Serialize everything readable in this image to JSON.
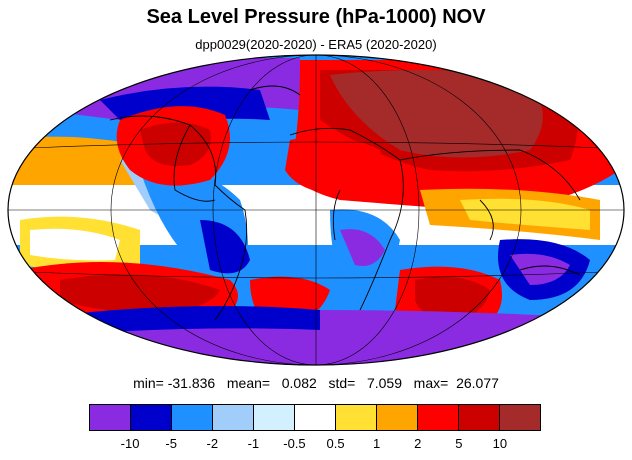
{
  "title": "Sea Level Pressure (hPa-1000) NOV",
  "subtitle": "dpp0029(2020-2020) - ERA5 (2020-2020)",
  "stats": {
    "text": "min= -31.836   mean=   0.082   std=   7.059   max=  26.077"
  },
  "colorbar": {
    "labels": [
      "-10",
      "-5",
      "-2",
      "-1",
      "-0.5",
      "0.5",
      "1",
      "2",
      "5",
      "10"
    ],
    "colors": [
      "#8a2be2",
      "#0000cd",
      "#1e90ff",
      "#a0cdfa",
      "#d2f0ff",
      "#ffffff",
      "#ffe033",
      "#ffa500",
      "#ff0000",
      "#cd0000",
      "#a52a2a"
    ]
  }
}
